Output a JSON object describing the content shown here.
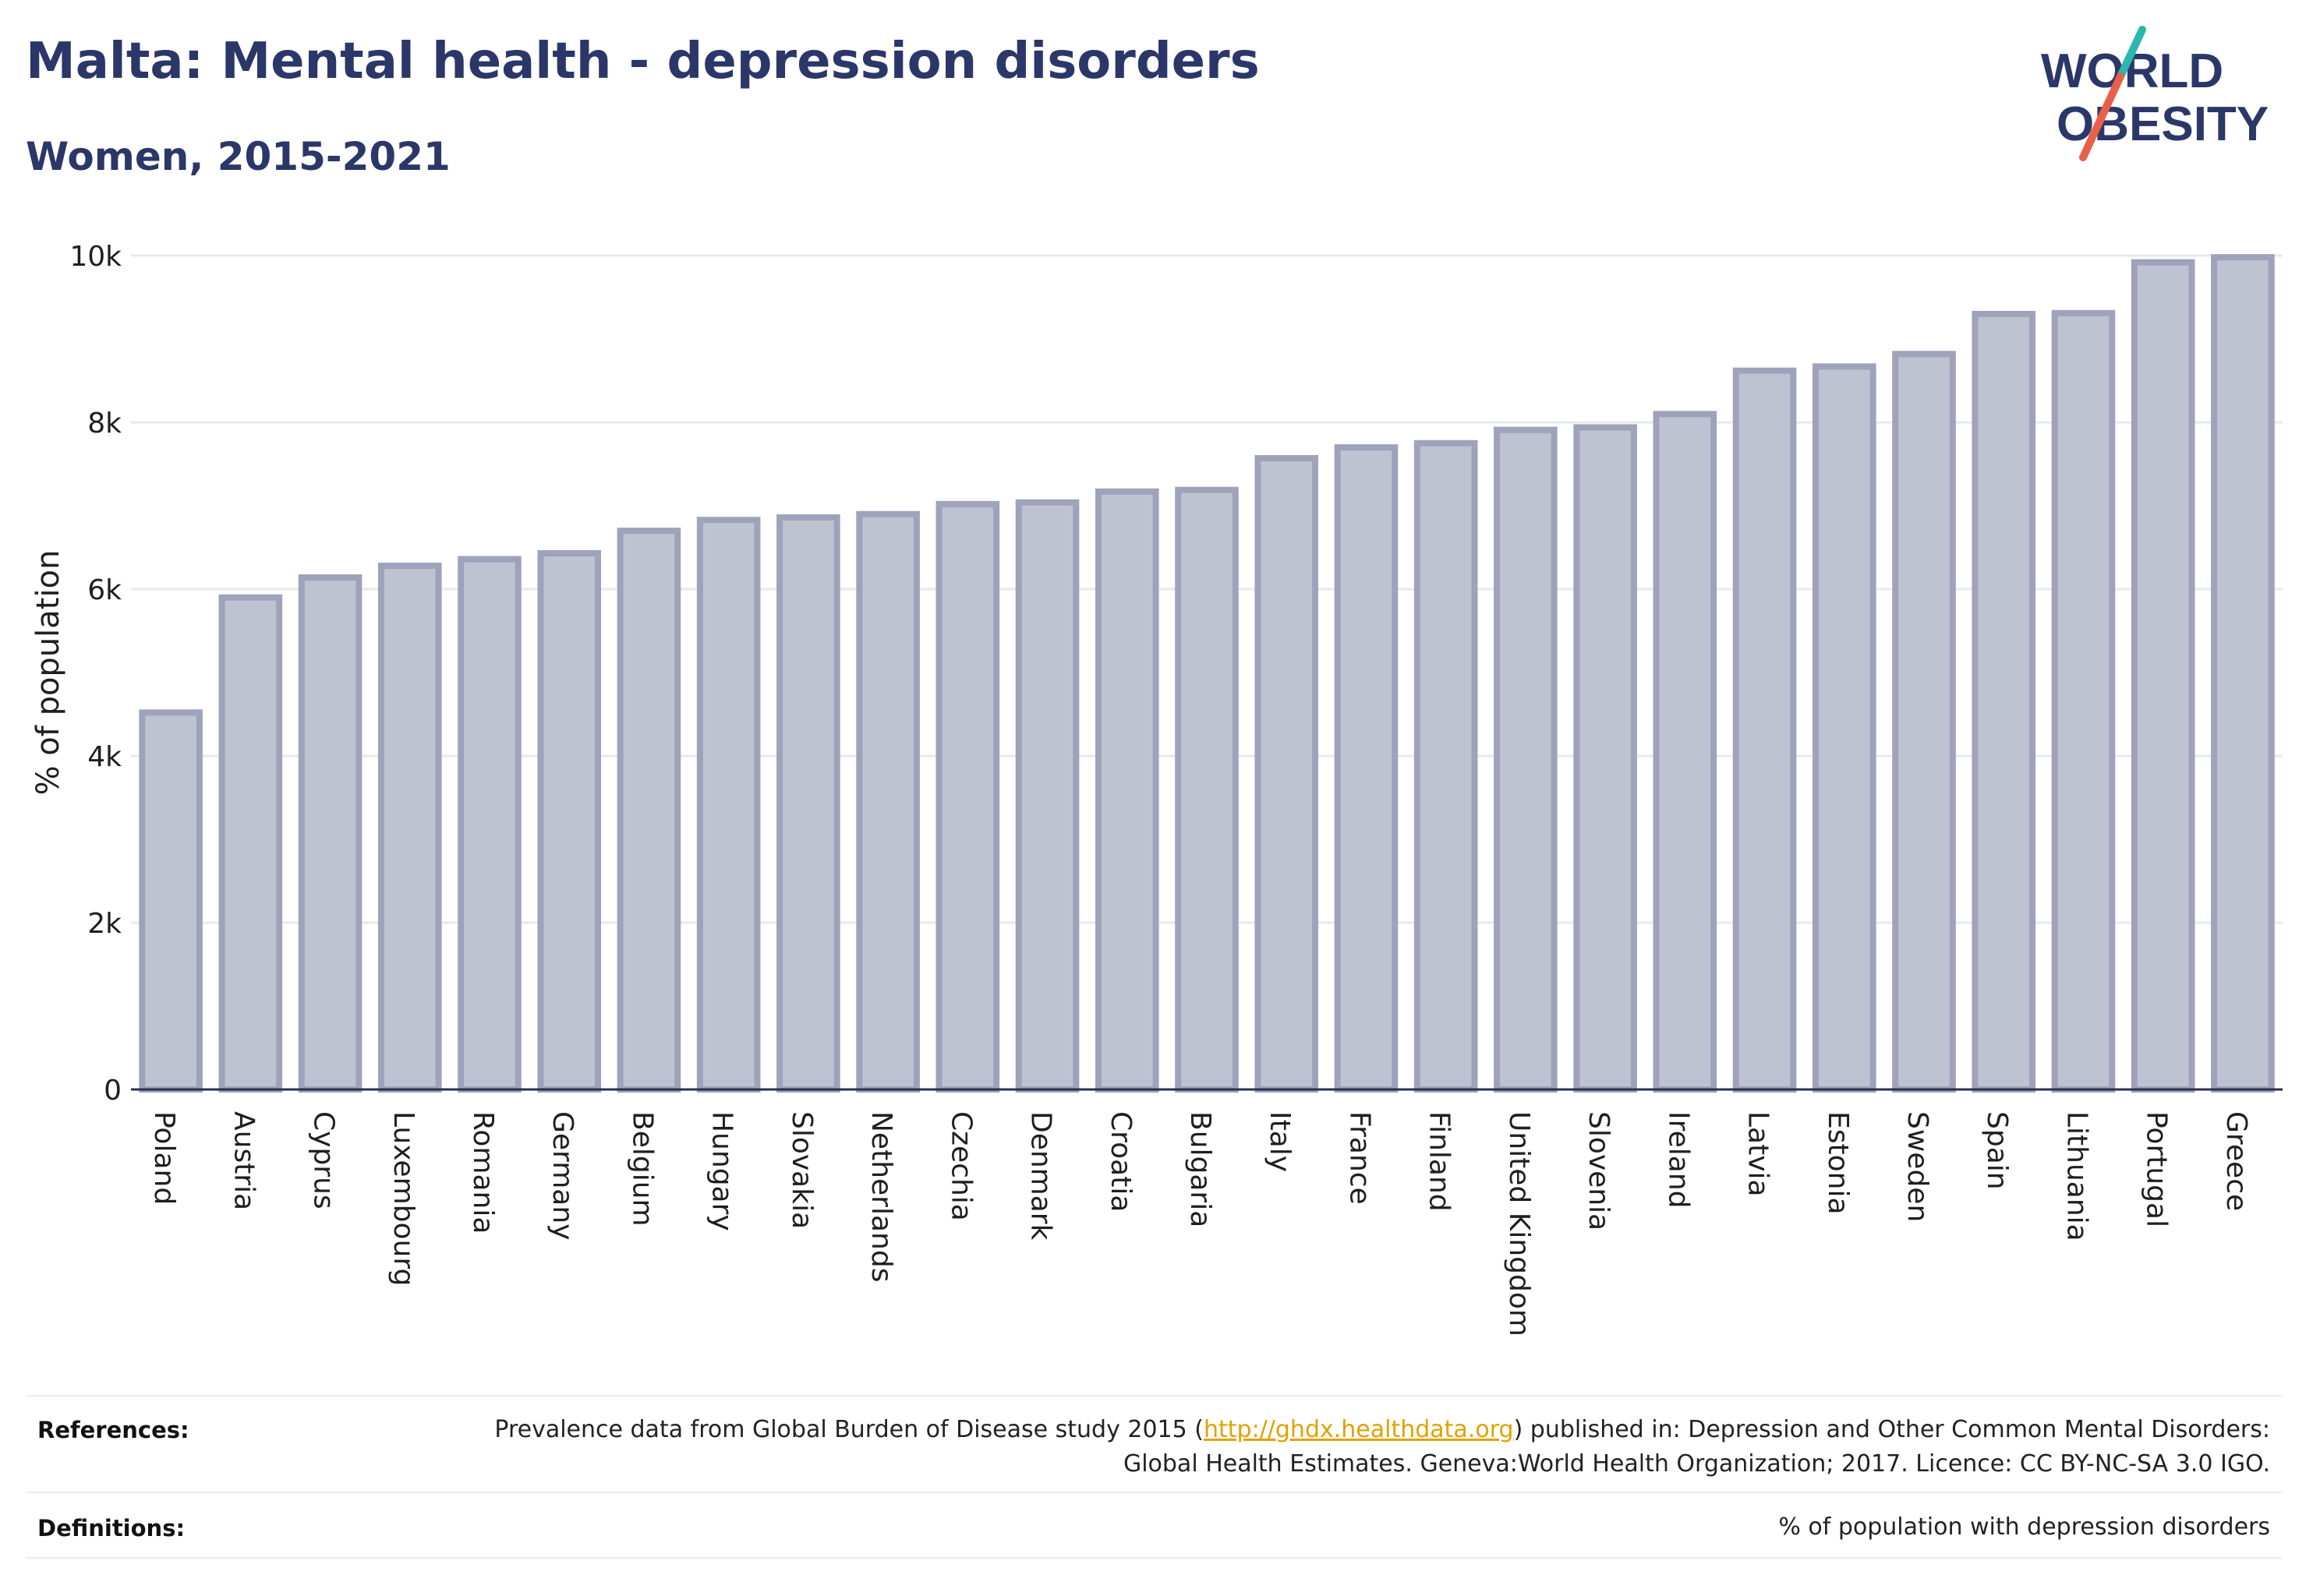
{
  "header": {
    "title": "Malta: Mental health - depression disorders",
    "subtitle": "Women, 2015-2021"
  },
  "logo": {
    "line1": "WORLD",
    "line2": "OBESITY"
  },
  "footer": {
    "references_label": "References:",
    "references_text_before": "Prevalence data from Global Burden of Disease study 2015 (",
    "references_link": "http://ghdx.healthdata.org",
    "references_text_after": ") published in: Depression and Other Common Mental Disorders: Global Health Estimates. Geneva:World Health Organization; 2017. Licence: CC BY-NC-SA 3.0 IGO.",
    "definitions_label": "Definitions:",
    "definitions_text": "% of population with depression disorders"
  },
  "colors": {
    "title": "#2b3768",
    "bar_fill": "#bfc2d0",
    "bar_stroke": "#9ea3bb",
    "axis": "#2b3050",
    "grid": "#e7e9ef",
    "link": "#e0a200",
    "logo_accent_teal": "#2ab7b0",
    "logo_accent_red": "#e8604c"
  },
  "chart_data": {
    "type": "bar",
    "title": "Malta: Mental health - depression disorders",
    "subtitle": "Women, 2015-2021",
    "xlabel": "",
    "ylabel": "% of population",
    "ylim": [
      0,
      10000
    ],
    "yticks": [
      0,
      2000,
      4000,
      6000,
      8000,
      10000
    ],
    "ytick_labels": [
      "0",
      "2k",
      "4k",
      "6k",
      "8k",
      "10k"
    ],
    "grid": true,
    "categories": [
      "Poland",
      "Austria",
      "Cyprus",
      "Luxembourg",
      "Romania",
      "Germany",
      "Belgium",
      "Hungary",
      "Slovakia",
      "Netherlands",
      "Czechia",
      "Denmark",
      "Croatia",
      "Bulgaria",
      "Italy",
      "France",
      "Finland",
      "United Kingdom",
      "Slovenia",
      "Ireland",
      "Latvia",
      "Estonia",
      "Sweden",
      "Spain",
      "Lithuania",
      "Portugal",
      "Greece"
    ],
    "values": [
      4520,
      5900,
      6140,
      6280,
      6360,
      6430,
      6700,
      6830,
      6860,
      6900,
      7020,
      7040,
      7170,
      7190,
      7570,
      7700,
      7750,
      7910,
      7940,
      8100,
      8620,
      8670,
      8820,
      9300,
      9310,
      9920,
      9980
    ]
  }
}
